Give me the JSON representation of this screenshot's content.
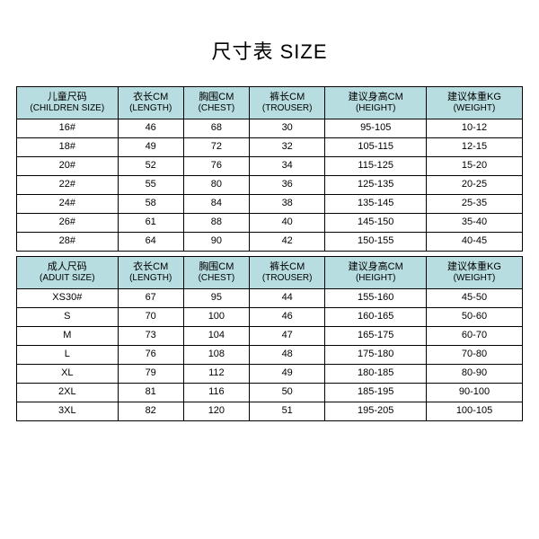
{
  "title": "尺寸表 SIZE",
  "header_bg": "#b8dde0",
  "row_bg": "#ffffff",
  "children": {
    "columns": [
      {
        "cn": "儿童尺码",
        "en": "(CHILDREN SIZE)"
      },
      {
        "cn": "衣长CM",
        "en": "(LENGTH)"
      },
      {
        "cn": "胸围CM",
        "en": "(CHEST)"
      },
      {
        "cn": "裤长CM",
        "en": "(TROUSER)"
      },
      {
        "cn": "建议身高CM",
        "en": "(HEIGHT)"
      },
      {
        "cn": "建议体重KG",
        "en": "(WEIGHT)"
      }
    ],
    "rows": [
      [
        "16#",
        "46",
        "68",
        "30",
        "95-105",
        "10-12"
      ],
      [
        "18#",
        "49",
        "72",
        "32",
        "105-115",
        "12-15"
      ],
      [
        "20#",
        "52",
        "76",
        "34",
        "115-125",
        "15-20"
      ],
      [
        "22#",
        "55",
        "80",
        "36",
        "125-135",
        "20-25"
      ],
      [
        "24#",
        "58",
        "84",
        "38",
        "135-145",
        "25-35"
      ],
      [
        "26#",
        "61",
        "88",
        "40",
        "145-150",
        "35-40"
      ],
      [
        "28#",
        "64",
        "90",
        "42",
        "150-155",
        "40-45"
      ]
    ]
  },
  "adult": {
    "columns": [
      {
        "cn": "成人尺码",
        "en": "(ADUIT SIZE)"
      },
      {
        "cn": "衣长CM",
        "en": "(LENGTH)"
      },
      {
        "cn": "胸围CM",
        "en": "(CHEST)"
      },
      {
        "cn": "裤长CM",
        "en": "(TROUSER)"
      },
      {
        "cn": "建议身高CM",
        "en": "(HEIGHT)"
      },
      {
        "cn": "建议体重KG",
        "en": "(WEIGHT)"
      }
    ],
    "rows": [
      [
        "XS30#",
        "67",
        "95",
        "44",
        "155-160",
        "45-50"
      ],
      [
        "S",
        "70",
        "100",
        "46",
        "160-165",
        "50-60"
      ],
      [
        "M",
        "73",
        "104",
        "47",
        "165-175",
        "60-70"
      ],
      [
        "L",
        "76",
        "108",
        "48",
        "175-180",
        "70-80"
      ],
      [
        "XL",
        "79",
        "112",
        "49",
        "180-185",
        "80-90"
      ],
      [
        "2XL",
        "81",
        "116",
        "50",
        "185-195",
        "90-100"
      ],
      [
        "3XL",
        "82",
        "120",
        "51",
        "195-205",
        "100-105"
      ]
    ]
  }
}
